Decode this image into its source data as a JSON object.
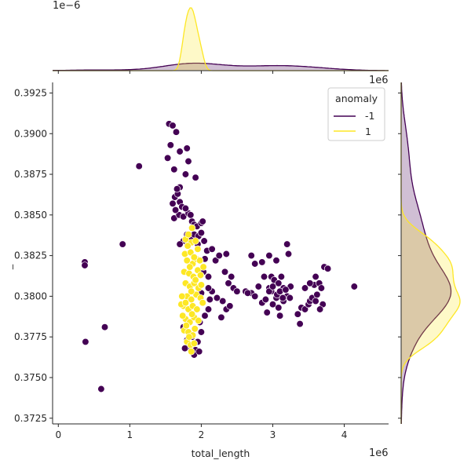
{
  "chart_data": {
    "type": "scatter",
    "title": "",
    "xlabel": "total_length",
    "ylabel": "_",
    "x_offset_text": "1e6",
    "y_offset_text_right": "1e6",
    "top_marginal_offset_text": "1e−6",
    "xlim": [
      -0.08,
      4.62
    ],
    "ylim": [
      0.37215,
      0.39315
    ],
    "x_ticks": [
      0,
      1,
      2,
      3,
      4
    ],
    "x_tick_labels": [
      "0",
      "1",
      "2",
      "3",
      "4"
    ],
    "y_ticks": [
      0.3725,
      0.375,
      0.3775,
      0.38,
      0.3825,
      0.385,
      0.3875,
      0.39,
      0.3925
    ],
    "y_tick_labels": [
      "0.3725",
      "0.3750",
      "0.3775",
      "0.3800",
      "0.3825",
      "0.3850",
      "0.3875",
      "0.3900",
      "0.3925"
    ],
    "grid": false,
    "legend": {
      "title": "anomaly",
      "placement": "top-right",
      "entries": [
        "-1",
        "1"
      ]
    },
    "colors": {
      "-1": "#440154",
      "1": "#fde725"
    },
    "marginals": {
      "top": "kde of total_length by anomaly",
      "right": "kde of y by anomaly"
    },
    "series": [
      {
        "name": "-1",
        "color": "#440154",
        "points": [
          [
            0.37,
            0.3821
          ],
          [
            0.37,
            0.3819
          ],
          [
            0.38,
            0.3772
          ],
          [
            0.65,
            0.3781
          ],
          [
            0.6,
            0.3743
          ],
          [
            0.9,
            0.3832
          ],
          [
            1.13,
            0.388
          ],
          [
            1.55,
            0.3906
          ],
          [
            1.6,
            0.3905
          ],
          [
            1.65,
            0.3901
          ],
          [
            1.57,
            0.3893
          ],
          [
            1.53,
            0.3885
          ],
          [
            1.7,
            0.3889
          ],
          [
            1.8,
            0.3891
          ],
          [
            1.78,
            0.3875
          ],
          [
            1.92,
            0.3873
          ],
          [
            1.62,
            0.3878
          ],
          [
            1.82,
            0.3883
          ],
          [
            1.7,
            0.3867
          ],
          [
            1.6,
            0.3857
          ],
          [
            1.63,
            0.3861
          ],
          [
            1.67,
            0.3863
          ],
          [
            1.66,
            0.3866
          ],
          [
            1.7,
            0.3858
          ],
          [
            1.62,
            0.3848
          ],
          [
            1.69,
            0.385
          ],
          [
            1.75,
            0.3849
          ],
          [
            1.82,
            0.3851
          ],
          [
            1.87,
            0.3846
          ],
          [
            1.9,
            0.3844
          ],
          [
            1.94,
            0.3843
          ],
          [
            2.0,
            0.3845
          ],
          [
            2.02,
            0.3846
          ],
          [
            1.64,
            0.3853
          ],
          [
            1.73,
            0.3855
          ],
          [
            1.78,
            0.3854
          ],
          [
            1.85,
            0.385
          ],
          [
            1.8,
            0.3838
          ],
          [
            1.85,
            0.3836
          ],
          [
            1.9,
            0.3838
          ],
          [
            1.96,
            0.3837
          ],
          [
            2.0,
            0.3839
          ],
          [
            1.75,
            0.3834
          ],
          [
            1.7,
            0.3832
          ],
          [
            1.95,
            0.3832
          ],
          [
            2.04,
            0.3834
          ],
          [
            2.08,
            0.3828
          ],
          [
            2.15,
            0.3829
          ],
          [
            2.2,
            0.3822
          ],
          [
            2.25,
            0.3825
          ],
          [
            2.35,
            0.3826
          ],
          [
            2.33,
            0.3815
          ],
          [
            2.42,
            0.3812
          ],
          [
            2.45,
            0.3805
          ],
          [
            2.38,
            0.3808
          ],
          [
            2.5,
            0.3803
          ],
          [
            2.3,
            0.3797
          ],
          [
            2.22,
            0.3799
          ],
          [
            2.35,
            0.3792
          ],
          [
            2.28,
            0.3787
          ],
          [
            2.4,
            0.3794
          ],
          [
            2.15,
            0.3803
          ],
          [
            2.1,
            0.3792
          ],
          [
            2.05,
            0.3788
          ],
          [
            2.02,
            0.3796
          ],
          [
            1.98,
            0.3784
          ],
          [
            2.0,
            0.3778
          ],
          [
            1.95,
            0.3772
          ],
          [
            1.92,
            0.3767
          ],
          [
            1.9,
            0.3764
          ],
          [
            1.97,
            0.3766
          ],
          [
            1.87,
            0.3775
          ],
          [
            1.83,
            0.3769
          ],
          [
            1.8,
            0.3773
          ],
          [
            1.77,
            0.3768
          ],
          [
            1.75,
            0.3781
          ],
          [
            2.1,
            0.3812
          ],
          [
            2.05,
            0.3823
          ],
          [
            2.03,
            0.3815
          ],
          [
            2.1,
            0.3805
          ],
          [
            2.0,
            0.3802
          ],
          [
            2.12,
            0.3798
          ],
          [
            2.7,
            0.3825
          ],
          [
            2.75,
            0.382
          ],
          [
            2.85,
            0.3821
          ],
          [
            2.95,
            0.3825
          ],
          [
            3.05,
            0.3822
          ],
          [
            3.2,
            0.3832
          ],
          [
            3.22,
            0.3826
          ],
          [
            2.88,
            0.3812
          ],
          [
            2.95,
            0.3805
          ],
          [
            2.98,
            0.3812
          ],
          [
            3.02,
            0.381
          ],
          [
            3.08,
            0.3808
          ],
          [
            3.12,
            0.3812
          ],
          [
            3.15,
            0.3805
          ],
          [
            2.7,
            0.3802
          ],
          [
            2.75,
            0.38
          ],
          [
            2.8,
            0.3806
          ],
          [
            2.85,
            0.3796
          ],
          [
            2.9,
            0.3798
          ],
          [
            2.92,
            0.379
          ],
          [
            3.0,
            0.3795
          ],
          [
            3.05,
            0.3799
          ],
          [
            3.08,
            0.3793
          ],
          [
            3.1,
            0.3788
          ],
          [
            3.15,
            0.3797
          ],
          [
            3.2,
            0.38
          ],
          [
            3.24,
            0.3799
          ],
          [
            3.25,
            0.3806
          ],
          [
            2.98,
            0.3803
          ],
          [
            3.06,
            0.3801
          ],
          [
            3.14,
            0.3799
          ],
          [
            2.62,
            0.3803
          ],
          [
            2.65,
            0.3802
          ],
          [
            3.35,
            0.3789
          ],
          [
            3.38,
            0.3783
          ],
          [
            3.4,
            0.3793
          ],
          [
            3.45,
            0.3792
          ],
          [
            3.5,
            0.3795
          ],
          [
            3.52,
            0.3797
          ],
          [
            3.55,
            0.3799
          ],
          [
            3.6,
            0.3797
          ],
          [
            3.62,
            0.3801
          ],
          [
            3.58,
            0.3807
          ],
          [
            3.65,
            0.3808
          ],
          [
            3.68,
            0.3805
          ],
          [
            3.6,
            0.3812
          ],
          [
            3.52,
            0.3808
          ],
          [
            3.45,
            0.3805
          ],
          [
            3.72,
            0.3818
          ],
          [
            3.77,
            0.3817
          ],
          [
            3.7,
            0.3795
          ],
          [
            3.66,
            0.3792
          ],
          [
            4.14,
            0.3806
          ],
          [
            2.95,
            0.3803
          ],
          [
            3.0,
            0.3806
          ],
          [
            3.1,
            0.3803
          ],
          [
            3.18,
            0.3804
          ]
        ]
      },
      {
        "name": "1",
        "color": "#fde725",
        "points": [
          [
            1.78,
            0.3835
          ],
          [
            1.82,
            0.3838
          ],
          [
            1.86,
            0.3833
          ],
          [
            1.92,
            0.3834
          ],
          [
            1.77,
            0.3826
          ],
          [
            1.85,
            0.3827
          ],
          [
            1.95,
            0.3829
          ],
          [
            1.8,
            0.3822
          ],
          [
            1.88,
            0.382
          ],
          [
            1.93,
            0.3823
          ],
          [
            1.98,
            0.3822
          ],
          [
            1.76,
            0.3815
          ],
          [
            1.83,
            0.3814
          ],
          [
            1.89,
            0.3812
          ],
          [
            1.95,
            0.3816
          ],
          [
            1.99,
            0.3813
          ],
          [
            1.78,
            0.3808
          ],
          [
            1.84,
            0.3806
          ],
          [
            1.9,
            0.3808
          ],
          [
            1.96,
            0.3805
          ],
          [
            1.8,
            0.38
          ],
          [
            1.86,
            0.3798
          ],
          [
            1.93,
            0.3801
          ],
          [
            1.99,
            0.3799
          ],
          [
            1.75,
            0.3794
          ],
          [
            1.82,
            0.3792
          ],
          [
            1.88,
            0.3794
          ],
          [
            1.94,
            0.3792
          ],
          [
            1.78,
            0.3786
          ],
          [
            1.84,
            0.3784
          ],
          [
            1.9,
            0.3787
          ],
          [
            1.96,
            0.3785
          ],
          [
            1.76,
            0.3779
          ],
          [
            1.82,
            0.3778
          ],
          [
            1.88,
            0.3776
          ],
          [
            1.8,
            0.3772
          ],
          [
            1.85,
            0.377
          ],
          [
            1.86,
            0.3766
          ],
          [
            1.9,
            0.3771
          ],
          [
            1.73,
            0.38
          ],
          [
            1.74,
            0.3788
          ],
          [
            1.72,
            0.3795
          ],
          [
            2.0,
            0.3807
          ],
          [
            2.02,
            0.3796
          ],
          [
            2.03,
            0.3818
          ],
          [
            1.81,
            0.3831
          ],
          [
            1.87,
            0.3842
          ],
          [
            1.9,
            0.3824
          ],
          [
            1.84,
            0.3818
          ],
          [
            1.92,
            0.381
          ],
          [
            1.86,
            0.3803
          ],
          [
            1.78,
            0.3796
          ],
          [
            1.87,
            0.3789
          ],
          [
            1.79,
            0.3782
          ],
          [
            1.91,
            0.378
          ],
          [
            1.83,
            0.3775
          ]
        ]
      }
    ]
  }
}
